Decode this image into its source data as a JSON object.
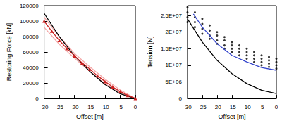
{
  "chart_data": [
    {
      "type": "line",
      "x_label": "Offset [m]",
      "y_label": "Restoring Force [kN]",
      "xlim": [
        -30,
        0
      ],
      "xticks": [
        -30,
        -25,
        -20,
        -15,
        -10,
        -5,
        0
      ],
      "ylim": [
        0,
        120000
      ],
      "yticks": [
        0,
        20000,
        40000,
        60000,
        80000,
        100000,
        120000
      ],
      "grid": false,
      "series": [
        {
          "color": "#f4a6a6",
          "marker": "none",
          "line_style": "solid",
          "x": [
            -30,
            -25,
            -20,
            -15,
            -10,
            -5,
            0
          ],
          "values": [
            105000,
            80000,
            58000,
            41000,
            25000,
            11000,
            0
          ]
        },
        {
          "color": "#f4a6a6",
          "marker": "none",
          "line_style": "solid",
          "x": [
            -30,
            -25,
            -20,
            -15,
            -10,
            -5,
            0
          ],
          "values": [
            92000,
            70000,
            52000,
            35000,
            19000,
            7500,
            0
          ]
        },
        {
          "color": "#000000",
          "marker": "none",
          "line_style": "solid",
          "x": [
            -30,
            -25,
            -20,
            -15,
            -10,
            -5,
            0
          ],
          "values": [
            110000,
            80000,
            55000,
            35000,
            18000,
            6000,
            0
          ]
        },
        {
          "color": "#cc2222",
          "marker": "triangle",
          "line_style": "solid",
          "x": [
            -30,
            -27.5,
            -25,
            -22.5,
            -20,
            -17.5,
            -15,
            -12.5,
            -10,
            -7.5,
            -5,
            -2.5,
            0
          ],
          "values": [
            100000,
            87000,
            75000,
            64500,
            55000,
            46000,
            38000,
            29500,
            22000,
            15000,
            9000,
            4000,
            0
          ]
        }
      ]
    },
    {
      "type": "line",
      "x_label": "Offset [m]",
      "y_label": "Tension [N]",
      "xlim": [
        -30,
        0
      ],
      "xticks": [
        -30,
        -25,
        -20,
        -15,
        -10,
        -5,
        0
      ],
      "ylim": [
        0,
        28000000
      ],
      "yticks": [
        0,
        {
          "value": 5000000,
          "label": "5E+06"
        },
        {
          "value": 10000000,
          "label": "1E+07"
        },
        {
          "value": 15000000,
          "label": "1.5E+07"
        },
        {
          "value": 20000000,
          "label": "2E+07"
        },
        {
          "value": 25000000,
          "label": "2.5E+07"
        }
      ],
      "grid": false,
      "series": [
        {
          "type": "scatter",
          "color": "#000000",
          "marker": "circle",
          "line_style": "none",
          "x": [
            -30,
            -30,
            -30,
            -30,
            -27.5,
            -27.5,
            -27.5,
            -27.5,
            -25,
            -25,
            -25,
            -25,
            -22.5,
            -22.5,
            -22.5,
            -22.5,
            -20,
            -20,
            -20,
            -20,
            -17.5,
            -17.5,
            -17.5,
            -17.5,
            -15,
            -15,
            -15,
            -15,
            -12.5,
            -12.5,
            -12.5,
            -12.5,
            -10,
            -10,
            -10,
            -10,
            -7.5,
            -7.5,
            -7.5,
            -7.5,
            -5,
            -5,
            -5,
            -5,
            -2.5,
            -2.5,
            -2.5,
            -2.5,
            0,
            0,
            0,
            0
          ],
          "values": [
            23000000,
            24500000,
            26000000,
            27500000,
            21500000,
            23000000,
            24500000,
            26000000,
            19500000,
            21000000,
            22500000,
            24000000,
            18000000,
            19000000,
            20500000,
            22000000,
            16500000,
            17500000,
            19000000,
            20000000,
            15000000,
            16000000,
            17500000,
            18500000,
            14000000,
            15000000,
            16000000,
            17000000,
            13000000,
            14000000,
            15000000,
            16000000,
            12000000,
            13000000,
            14000000,
            15000000,
            11000000,
            12000000,
            13000000,
            14000000,
            10000000,
            11000000,
            12000000,
            13000000,
            9500000,
            10500000,
            11500000,
            12500000,
            9000000,
            10000000,
            11000000,
            12000000
          ]
        },
        {
          "type": "line",
          "color": "#3344cc",
          "marker": "none",
          "line_style": "solid",
          "x": [
            -28,
            -25,
            -20,
            -15,
            -10,
            -5,
            0
          ],
          "values": [
            25500000,
            21500000,
            16500000,
            13000000,
            11000000,
            9300000,
            8500000
          ]
        },
        {
          "type": "line",
          "color": "#000000",
          "marker": "none",
          "line_style": "solid",
          "x": [
            -30,
            -25,
            -20,
            -15,
            -10,
            -5,
            0
          ],
          "values": [
            24000000,
            17000000,
            11500000,
            7500000,
            4500000,
            2500000,
            1500000
          ]
        }
      ]
    }
  ]
}
